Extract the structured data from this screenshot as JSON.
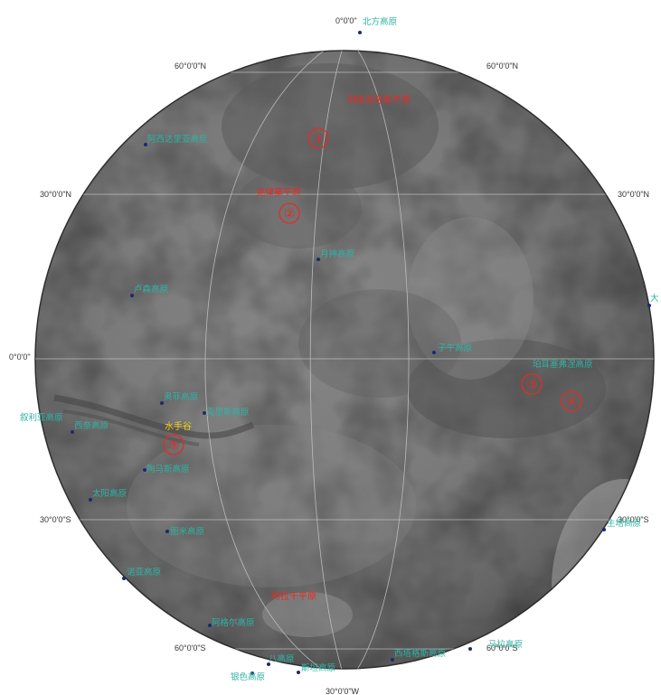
{
  "colors": {
    "feature_label": "#2fb3a4",
    "site_label": "#e52b24",
    "canyon_label": "#f5d10f",
    "graticule": "#c9c9c9",
    "point": "#1e2a6e"
  },
  "graticule_labels": {
    "top": "0°0'0\"",
    "bottom": "30°0'0\"W",
    "equator_left": "0°0'0\"",
    "lat60n_left": "60°0'0\"N",
    "lat60n_right": "60°0'0\"N",
    "lat30n_left": "30°0'0\"N",
    "lat30n_right": "30°0'0\"N",
    "lat30s_left": "30°0'0\"S",
    "lat30s_right": "30°0'0\"S",
    "lat60s_left": "60°0'0\"S",
    "lat60s_right": "60°0'0\"S"
  },
  "features": {
    "north_plateau": "北方高原",
    "utopia_left": "阿西达里亚高原",
    "lunae": "月神高原",
    "chryse": "克里斯高原",
    "arcadia_left": "卢森高原",
    "meridiani": "子午高原",
    "syria": "叙利亚高原",
    "sinai": "西奈高原",
    "tharsis_upper": "奥菲高原",
    "solis": "太阳高原",
    "thaumasia": "陶马斯高原",
    "tyrrhena": "图米高原",
    "noachis": "诺亚高原",
    "hellas_bottom_left": "阿尔吉尔高原",
    "argyre": "阿格尔高原",
    "ausonia": "阿森尼亚高原",
    "bottom_center": "八高原",
    "bottom_silver": "银色高原",
    "bottom_small": "斯坦高原",
    "bottom_right1": "西塔格斯高原",
    "bottom_right2": "马拉高原",
    "right_edge": "大",
    "east_plains": "主塔高原",
    "aurorae": "珀耳塞弗涅高原"
  },
  "sites": {
    "s1": "阿斯克劳斯平原",
    "s2": "克律塞平原",
    "s3": "阿拉伯台地北部",
    "s_argyre": "阿拉干平原"
  },
  "canyon": "水手谷",
  "site_numbers": [
    "①",
    "②",
    "③",
    "④",
    "⑤"
  ]
}
